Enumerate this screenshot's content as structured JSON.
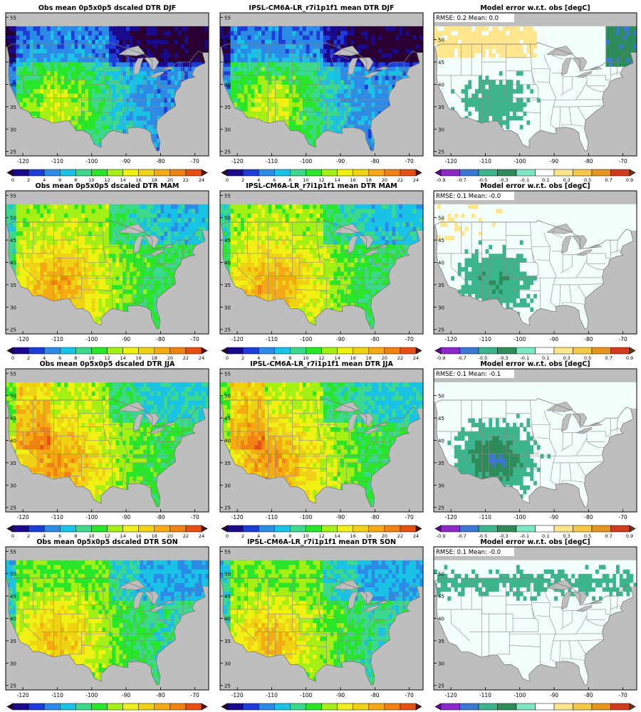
{
  "figure": {
    "rows": [
      "DJF",
      "MAM",
      "JJA",
      "SON"
    ],
    "x_ticks": [
      -120,
      -110,
      -100,
      -90,
      -80,
      -70
    ],
    "y_ticks": [
      25,
      30,
      35,
      40,
      45,
      50,
      55
    ],
    "xlim": [
      -125,
      -66
    ],
    "ylim": [
      24,
      56
    ],
    "grid": false
  },
  "colorbars": {
    "dtr": {
      "tick_labels": [
        "0",
        "2",
        "4",
        "6",
        "8",
        "10",
        "12",
        "14",
        "16",
        "18",
        "20",
        "22",
        "24"
      ],
      "colors": [
        "#2a0032",
        "#1a0a8c",
        "#1e3cd8",
        "#2b8be6",
        "#19c3e6",
        "#3cd88c",
        "#28e628",
        "#a5f014",
        "#f0f014",
        "#f0d214",
        "#f5aa14",
        "#f08214",
        "#e65014",
        "#501414"
      ]
    },
    "error": {
      "tick_labels": [
        "-0.9",
        "-0.7",
        "-0.5",
        "-0.3",
        "-0.1",
        "0.1",
        "0.3",
        "0.5",
        "0.7",
        "0.9"
      ],
      "colors": [
        "#640096",
        "#8c28c8",
        "#3c78d2",
        "#3cb48c",
        "#2d8c5a",
        "#7de6c3",
        "#ffffff",
        "#ffe68c",
        "#f5c846",
        "#e6961e",
        "#d23c1e",
        "#643c14"
      ]
    }
  },
  "chart_data": [
    {
      "type": "heatmap",
      "season": "DJF",
      "panel": "obs",
      "title": "Obs mean 0p5x0p5 dscaled DTR DJF",
      "units": "degC",
      "value_range": [
        0,
        24
      ]
    },
    {
      "type": "heatmap",
      "season": "DJF",
      "panel": "model",
      "title": "IPSL-CM6A-LR_r7i1p1f1 mean DTR DJF",
      "units": "degC",
      "value_range": [
        0,
        24
      ]
    },
    {
      "type": "heatmap",
      "season": "DJF",
      "panel": "error",
      "title": "Model error w.r.t. obs [degC]",
      "stats": "RMSE: 0.2  Mean: 0.0",
      "rmse": 0.2,
      "mean": 0.0,
      "value_range": [
        -0.9,
        0.9
      ]
    },
    {
      "type": "heatmap",
      "season": "MAM",
      "panel": "obs",
      "title": "Obs mean 0p5x0p5 dscaled DTR MAM",
      "units": "degC",
      "value_range": [
        0,
        24
      ]
    },
    {
      "type": "heatmap",
      "season": "MAM",
      "panel": "model",
      "title": "IPSL-CM6A-LR_r7i1p1f1 mean DTR MAM",
      "units": "degC",
      "value_range": [
        0,
        24
      ]
    },
    {
      "type": "heatmap",
      "season": "MAM",
      "panel": "error",
      "title": "Model error w.r.t. obs [degC]",
      "stats": "RMSE: 0.1  Mean: -0.0",
      "rmse": 0.1,
      "mean": -0.0,
      "value_range": [
        -0.9,
        0.9
      ]
    },
    {
      "type": "heatmap",
      "season": "JJA",
      "panel": "obs",
      "title": "Obs mean 0p5x0p5 dscaled DTR JJA",
      "units": "degC",
      "value_range": [
        0,
        24
      ]
    },
    {
      "type": "heatmap",
      "season": "JJA",
      "panel": "model",
      "title": "IPSL-CM6A-LR_r7i1p1f1 mean DTR JJA",
      "units": "degC",
      "value_range": [
        0,
        24
      ]
    },
    {
      "type": "heatmap",
      "season": "JJA",
      "panel": "error",
      "title": "Model error w.r.t. obs [degC]",
      "stats": "RMSE: 0.1  Mean: -0.1",
      "rmse": 0.1,
      "mean": -0.1,
      "value_range": [
        -0.9,
        0.9
      ]
    },
    {
      "type": "heatmap",
      "season": "SON",
      "panel": "obs",
      "title": "Obs mean 0p5x0p5 dscaled DTR SON",
      "units": "degC",
      "value_range": [
        0,
        24
      ]
    },
    {
      "type": "heatmap",
      "season": "SON",
      "panel": "model",
      "title": "IPSL-CM6A-LR_r7i1p1f1 mean DTR SON",
      "units": "degC",
      "value_range": [
        0,
        24
      ]
    },
    {
      "type": "heatmap",
      "season": "SON",
      "panel": "error",
      "title": "Model error w.r.t. obs [degC]",
      "stats": "RMSE: 0.1  Mean: -0.0",
      "rmse": 0.1,
      "mean": -0.0,
      "value_range": [
        -0.9,
        0.9
      ]
    }
  ]
}
